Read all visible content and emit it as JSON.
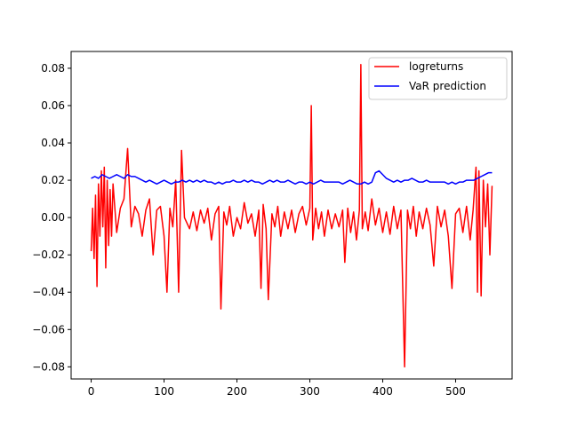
{
  "chart_data": {
    "type": "line",
    "title": "",
    "xlabel": "",
    "ylabel": "",
    "xlim": [
      -27.5,
      577.5
    ],
    "ylim": [
      -0.0865,
      0.089
    ],
    "x_ticks": [
      0,
      100,
      200,
      300,
      400,
      500
    ],
    "y_ticks": [
      -0.08,
      -0.06,
      -0.04,
      -0.02,
      0.0,
      0.02,
      0.04,
      0.06,
      0.08
    ],
    "x_tick_labels": [
      "0",
      "100",
      "200",
      "300",
      "400",
      "500"
    ],
    "y_tick_labels": [
      "−0.08",
      "−0.06",
      "−0.04",
      "−0.02",
      "0.00",
      "0.02",
      "0.04",
      "0.06",
      "0.08"
    ],
    "grid": false,
    "legend": "top-right",
    "series": [
      {
        "name": "logreturns",
        "color": "#ff0000",
        "x": [
          0,
          2,
          4,
          6,
          8,
          10,
          12,
          14,
          16,
          18,
          20,
          22,
          24,
          26,
          28,
          30,
          35,
          40,
          45,
          50,
          55,
          60,
          65,
          70,
          75,
          80,
          85,
          90,
          95,
          100,
          104,
          108,
          112,
          116,
          120,
          124,
          128,
          135,
          140,
          145,
          150,
          155,
          160,
          165,
          170,
          175,
          178,
          182,
          186,
          190,
          195,
          200,
          205,
          210,
          215,
          220,
          225,
          230,
          233,
          236,
          240,
          243,
          248,
          252,
          256,
          260,
          265,
          270,
          275,
          280,
          285,
          290,
          295,
          300,
          302,
          304,
          308,
          312,
          316,
          320,
          325,
          330,
          335,
          340,
          345,
          348,
          352,
          356,
          360,
          364,
          368,
          370,
          372,
          376,
          380,
          385,
          390,
          395,
          400,
          405,
          410,
          415,
          420,
          425,
          430,
          434,
          438,
          442,
          446,
          450,
          455,
          460,
          465,
          470,
          475,
          480,
          485,
          490,
          495,
          500,
          505,
          510,
          515,
          520,
          524,
          528,
          530,
          532,
          535,
          538,
          541,
          544,
          547,
          550
        ],
        "values": [
          -0.018,
          0.005,
          -0.022,
          0.012,
          -0.037,
          0.018,
          -0.01,
          0.025,
          -0.005,
          0.027,
          -0.027,
          0.02,
          -0.015,
          0.015,
          -0.01,
          0.018,
          -0.008,
          0.005,
          0.01,
          0.037,
          -0.005,
          0.006,
          0.002,
          -0.01,
          0.004,
          0.01,
          -0.02,
          0.004,
          0.006,
          -0.01,
          -0.04,
          0.005,
          -0.005,
          0.02,
          -0.04,
          0.036,
          0.0,
          -0.006,
          0.003,
          -0.007,
          0.004,
          -0.003,
          0.005,
          -0.012,
          0.002,
          0.006,
          -0.049,
          0.003,
          -0.004,
          0.006,
          -0.01,
          0.0,
          -0.006,
          0.008,
          -0.003,
          0.002,
          -0.01,
          0.004,
          -0.038,
          0.007,
          -0.006,
          -0.044,
          0.002,
          -0.005,
          0.006,
          -0.01,
          0.003,
          -0.006,
          0.004,
          -0.008,
          0.002,
          0.006,
          -0.004,
          0.005,
          0.06,
          -0.012,
          0.005,
          -0.006,
          0.003,
          -0.01,
          0.004,
          -0.006,
          0.002,
          -0.005,
          0.004,
          -0.024,
          0.005,
          -0.008,
          0.003,
          -0.012,
          0.004,
          0.082,
          -0.006,
          0.003,
          -0.007,
          0.01,
          -0.004,
          0.005,
          -0.008,
          0.003,
          -0.009,
          0.006,
          -0.006,
          0.004,
          -0.08,
          0.004,
          -0.006,
          0.006,
          -0.01,
          0.003,
          -0.006,
          0.005,
          -0.004,
          -0.026,
          0.006,
          -0.005,
          0.004,
          -0.01,
          -0.038,
          0.002,
          0.005,
          -0.008,
          0.006,
          -0.012,
          0.004,
          0.027,
          -0.04,
          0.025,
          -0.042,
          0.02,
          -0.005,
          0.018,
          -0.02,
          0.017
        ]
      },
      {
        "name": "VaR prediction",
        "color": "#0000ff",
        "x": [
          0,
          5,
          10,
          15,
          20,
          25,
          30,
          35,
          40,
          45,
          50,
          55,
          60,
          65,
          70,
          75,
          80,
          85,
          90,
          95,
          100,
          105,
          110,
          115,
          120,
          125,
          130,
          135,
          140,
          145,
          150,
          155,
          160,
          165,
          170,
          175,
          180,
          185,
          190,
          195,
          200,
          205,
          210,
          215,
          220,
          225,
          230,
          235,
          240,
          245,
          250,
          255,
          260,
          265,
          270,
          275,
          280,
          285,
          290,
          295,
          300,
          305,
          310,
          315,
          320,
          325,
          330,
          335,
          340,
          345,
          350,
          355,
          360,
          365,
          370,
          375,
          380,
          385,
          390,
          395,
          400,
          405,
          410,
          415,
          420,
          425,
          430,
          435,
          440,
          445,
          450,
          455,
          460,
          465,
          470,
          475,
          480,
          485,
          490,
          495,
          500,
          505,
          510,
          515,
          520,
          525,
          530,
          535,
          540,
          545,
          550
        ],
        "values": [
          0.021,
          0.022,
          0.021,
          0.023,
          0.022,
          0.021,
          0.022,
          0.023,
          0.022,
          0.021,
          0.023,
          0.022,
          0.022,
          0.021,
          0.02,
          0.019,
          0.02,
          0.019,
          0.018,
          0.019,
          0.02,
          0.019,
          0.018,
          0.019,
          0.019,
          0.02,
          0.019,
          0.02,
          0.019,
          0.02,
          0.019,
          0.02,
          0.019,
          0.019,
          0.018,
          0.019,
          0.018,
          0.019,
          0.019,
          0.02,
          0.019,
          0.019,
          0.02,
          0.019,
          0.02,
          0.019,
          0.019,
          0.018,
          0.019,
          0.02,
          0.019,
          0.02,
          0.019,
          0.019,
          0.02,
          0.019,
          0.018,
          0.019,
          0.019,
          0.018,
          0.019,
          0.018,
          0.019,
          0.02,
          0.019,
          0.019,
          0.019,
          0.019,
          0.019,
          0.018,
          0.019,
          0.02,
          0.019,
          0.018,
          0.018,
          0.019,
          0.018,
          0.019,
          0.024,
          0.025,
          0.023,
          0.021,
          0.02,
          0.019,
          0.02,
          0.019,
          0.02,
          0.02,
          0.021,
          0.02,
          0.019,
          0.019,
          0.02,
          0.019,
          0.019,
          0.019,
          0.019,
          0.019,
          0.018,
          0.019,
          0.018,
          0.019,
          0.019,
          0.02,
          0.02,
          0.02,
          0.021,
          0.022,
          0.023,
          0.024,
          0.024
        ]
      }
    ]
  }
}
